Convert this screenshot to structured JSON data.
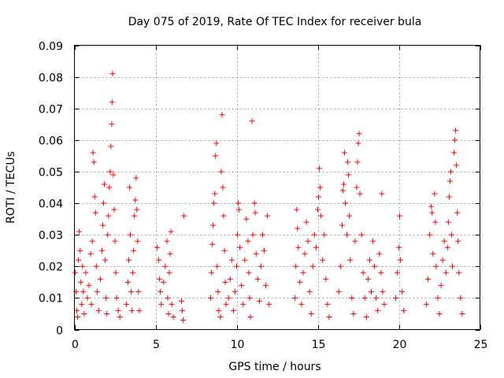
{
  "chart_data": {
    "type": "scatter",
    "title": "Day 075 of 2019, Rate Of TEC Index for receiver bula",
    "xlabel": "GPS time / hours",
    "ylabel": "ROTI / TECUs",
    "xlim": [
      0,
      25
    ],
    "ylim": [
      0,
      0.09
    ],
    "x_ticks": [
      0,
      5,
      10,
      15,
      20,
      25
    ],
    "x_tick_labels": [
      "0",
      "5",
      "10",
      "15",
      "20",
      "25"
    ],
    "y_ticks": [
      0,
      0.01,
      0.02,
      0.03,
      0.04,
      0.05,
      0.06,
      0.07,
      0.08,
      0.09
    ],
    "y_tick_labels": [
      "0",
      "0.01",
      "0.02",
      "0.03",
      "0.04",
      "0.05",
      "0.06",
      "0.07",
      "0.08",
      "0.09"
    ],
    "grid": true,
    "marker": "+",
    "marker_color": "#ff0000",
    "series": [
      {
        "name": "ROTI",
        "points": [
          [
            0.05,
            0.018
          ],
          [
            0.1,
            0.012
          ],
          [
            0.15,
            0.006
          ],
          [
            0.2,
            0.004
          ],
          [
            0.25,
            0.022
          ],
          [
            0.3,
            0.031
          ],
          [
            0.35,
            0.025
          ],
          [
            0.4,
            0.015
          ],
          [
            0.45,
            0.008
          ],
          [
            0.5,
            0.02
          ],
          [
            0.55,
            0.012
          ],
          [
            0.6,
            0.005
          ],
          [
            0.7,
            0.018
          ],
          [
            0.8,
            0.01
          ],
          [
            0.9,
            0.014
          ],
          [
            1.0,
            0.024
          ],
          [
            1.05,
            0.008
          ],
          [
            1.1,
            0.028
          ],
          [
            1.15,
            0.056
          ],
          [
            1.2,
            0.053
          ],
          [
            1.25,
            0.042
          ],
          [
            1.3,
            0.037
          ],
          [
            1.35,
            0.02
          ],
          [
            1.4,
            0.012
          ],
          [
            1.5,
            0.006
          ],
          [
            1.6,
            0.016
          ],
          [
            1.7,
            0.025
          ],
          [
            1.75,
            0.033
          ],
          [
            1.8,
            0.04
          ],
          [
            1.85,
            0.046
          ],
          [
            1.9,
            0.022
          ],
          [
            1.95,
            0.01
          ],
          [
            2.0,
            0.005
          ],
          [
            2.05,
            0.03
          ],
          [
            2.1,
            0.036
          ],
          [
            2.15,
            0.045
          ],
          [
            2.2,
            0.05
          ],
          [
            2.25,
            0.058
          ],
          [
            2.3,
            0.065
          ],
          [
            2.32,
            0.072
          ],
          [
            2.35,
            0.081
          ],
          [
            2.4,
            0.049
          ],
          [
            2.45,
            0.038
          ],
          [
            2.5,
            0.028
          ],
          [
            2.55,
            0.018
          ],
          [
            2.6,
            0.01
          ],
          [
            2.7,
            0.006
          ],
          [
            2.8,
            0.004
          ],
          [
            3.2,
            0.008
          ],
          [
            3.3,
            0.015
          ],
          [
            3.35,
            0.022
          ],
          [
            3.4,
            0.045
          ],
          [
            3.45,
            0.03
          ],
          [
            3.5,
            0.012
          ],
          [
            3.55,
            0.006
          ],
          [
            3.6,
            0.018
          ],
          [
            3.65,
            0.025
          ],
          [
            3.7,
            0.036
          ],
          [
            3.75,
            0.041
          ],
          [
            3.8,
            0.048
          ],
          [
            3.85,
            0.038
          ],
          [
            3.9,
            0.028
          ],
          [
            3.95,
            0.012
          ],
          [
            4.0,
            0.006
          ],
          [
            5.1,
            0.026
          ],
          [
            5.2,
            0.022
          ],
          [
            5.25,
            0.016
          ],
          [
            5.3,
            0.012
          ],
          [
            5.35,
            0.008
          ],
          [
            5.5,
            0.015
          ],
          [
            5.6,
            0.02
          ],
          [
            5.7,
            0.028
          ],
          [
            5.75,
            0.01
          ],
          [
            5.8,
            0.005
          ],
          [
            5.85,
            0.018
          ],
          [
            5.9,
            0.024
          ],
          [
            5.95,
            0.031
          ],
          [
            6.0,
            0.008
          ],
          [
            6.1,
            0.004
          ],
          [
            6.6,
            0.009
          ],
          [
            6.65,
            0.006
          ],
          [
            6.7,
            0.003
          ],
          [
            6.75,
            0.036
          ],
          [
            8.4,
            0.01
          ],
          [
            8.45,
            0.018
          ],
          [
            8.5,
            0.027
          ],
          [
            8.55,
            0.033
          ],
          [
            8.6,
            0.04
          ],
          [
            8.65,
            0.043
          ],
          [
            8.7,
            0.055
          ],
          [
            8.75,
            0.059
          ],
          [
            8.8,
            0.02
          ],
          [
            8.85,
            0.012
          ],
          [
            8.9,
            0.006
          ],
          [
            9.0,
            0.004
          ],
          [
            9.05,
            0.05
          ],
          [
            9.1,
            0.068
          ],
          [
            9.15,
            0.045
          ],
          [
            9.2,
            0.036
          ],
          [
            9.25,
            0.025
          ],
          [
            9.3,
            0.015
          ],
          [
            9.35,
            0.008
          ],
          [
            9.5,
            0.01
          ],
          [
            9.6,
            0.016
          ],
          [
            9.7,
            0.022
          ],
          [
            9.8,
            0.006
          ],
          [
            9.9,
            0.012
          ],
          [
            10.0,
            0.02
          ],
          [
            10.05,
            0.03
          ],
          [
            10.1,
            0.04
          ],
          [
            10.15,
            0.038
          ],
          [
            10.2,
            0.026
          ],
          [
            10.3,
            0.014
          ],
          [
            10.4,
            0.008
          ],
          [
            10.5,
            0.022
          ],
          [
            10.6,
            0.035
          ],
          [
            10.7,
            0.028
          ],
          [
            10.75,
            0.018
          ],
          [
            10.8,
            0.01
          ],
          [
            10.85,
            0.004
          ],
          [
            10.95,
            0.066
          ],
          [
            11.0,
            0.03
          ],
          [
            11.1,
            0.04
          ],
          [
            11.15,
            0.037
          ],
          [
            11.2,
            0.024
          ],
          [
            11.3,
            0.016
          ],
          [
            11.4,
            0.009
          ],
          [
            11.5,
            0.02
          ],
          [
            11.6,
            0.03
          ],
          [
            11.7,
            0.025
          ],
          [
            11.8,
            0.014
          ],
          [
            11.9,
            0.036
          ],
          [
            12.0,
            0.008
          ],
          [
            13.6,
            0.01
          ],
          [
            13.65,
            0.02
          ],
          [
            13.7,
            0.038
          ],
          [
            13.75,
            0.032
          ],
          [
            13.8,
            0.026
          ],
          [
            13.9,
            0.015
          ],
          [
            14.0,
            0.008
          ],
          [
            14.1,
            0.018
          ],
          [
            14.2,
            0.024
          ],
          [
            14.3,
            0.034
          ],
          [
            14.4,
            0.028
          ],
          [
            14.5,
            0.012
          ],
          [
            14.6,
            0.005
          ],
          [
            14.7,
            0.02
          ],
          [
            14.8,
            0.03
          ],
          [
            14.9,
            0.026
          ],
          [
            15.0,
            0.038
          ],
          [
            15.05,
            0.042
          ],
          [
            15.1,
            0.051
          ],
          [
            15.15,
            0.045
          ],
          [
            15.2,
            0.036
          ],
          [
            15.3,
            0.022
          ],
          [
            15.4,
            0.03
          ],
          [
            15.5,
            0.016
          ],
          [
            15.6,
            0.008
          ],
          [
            15.7,
            0.004
          ],
          [
            16.3,
            0.012
          ],
          [
            16.4,
            0.02
          ],
          [
            16.5,
            0.033
          ],
          [
            16.55,
            0.044
          ],
          [
            16.6,
            0.046
          ],
          [
            16.65,
            0.056
          ],
          [
            16.7,
            0.04
          ],
          [
            16.8,
            0.03
          ],
          [
            16.85,
            0.053
          ],
          [
            16.9,
            0.049
          ],
          [
            16.95,
            0.036
          ],
          [
            17.0,
            0.022
          ],
          [
            17.1,
            0.01
          ],
          [
            17.2,
            0.005
          ],
          [
            17.3,
            0.028
          ],
          [
            17.4,
            0.045
          ],
          [
            17.45,
            0.053
          ],
          [
            17.5,
            0.059
          ],
          [
            17.55,
            0.062
          ],
          [
            17.6,
            0.043
          ],
          [
            17.7,
            0.03
          ],
          [
            17.8,
            0.018
          ],
          [
            17.9,
            0.01
          ],
          [
            18.0,
            0.004
          ],
          [
            18.1,
            0.016
          ],
          [
            18.2,
            0.022
          ],
          [
            18.3,
            0.012
          ],
          [
            18.4,
            0.028
          ],
          [
            18.5,
            0.02
          ],
          [
            18.6,
            0.01
          ],
          [
            18.7,
            0.006
          ],
          [
            18.8,
            0.024
          ],
          [
            18.9,
            0.018
          ],
          [
            18.95,
            0.043
          ],
          [
            19.0,
            0.012
          ],
          [
            19.1,
            0.008
          ],
          [
            19.8,
            0.01
          ],
          [
            19.9,
            0.018
          ],
          [
            20.0,
            0.026
          ],
          [
            20.05,
            0.036
          ],
          [
            20.1,
            0.022
          ],
          [
            20.2,
            0.012
          ],
          [
            20.3,
            0.006
          ],
          [
            21.7,
            0.008
          ],
          [
            21.8,
            0.016
          ],
          [
            21.9,
            0.03
          ],
          [
            22.0,
            0.039
          ],
          [
            22.05,
            0.037
          ],
          [
            22.1,
            0.024
          ],
          [
            22.2,
            0.043
          ],
          [
            22.25,
            0.034
          ],
          [
            22.3,
            0.02
          ],
          [
            22.4,
            0.01
          ],
          [
            22.5,
            0.005
          ],
          [
            22.6,
            0.014
          ],
          [
            22.7,
            0.022
          ],
          [
            22.8,
            0.028
          ],
          [
            22.9,
            0.018
          ],
          [
            23.0,
            0.026
          ],
          [
            23.05,
            0.034
          ],
          [
            23.1,
            0.042
          ],
          [
            23.15,
            0.047
          ],
          [
            23.2,
            0.05
          ],
          [
            23.25,
            0.03
          ],
          [
            23.3,
            0.02
          ],
          [
            23.4,
            0.056
          ],
          [
            23.45,
            0.06
          ],
          [
            23.5,
            0.063
          ],
          [
            23.55,
            0.052
          ],
          [
            23.6,
            0.037
          ],
          [
            23.65,
            0.028
          ],
          [
            23.7,
            0.018
          ],
          [
            23.8,
            0.01
          ],
          [
            23.9,
            0.005
          ]
        ]
      }
    ]
  }
}
